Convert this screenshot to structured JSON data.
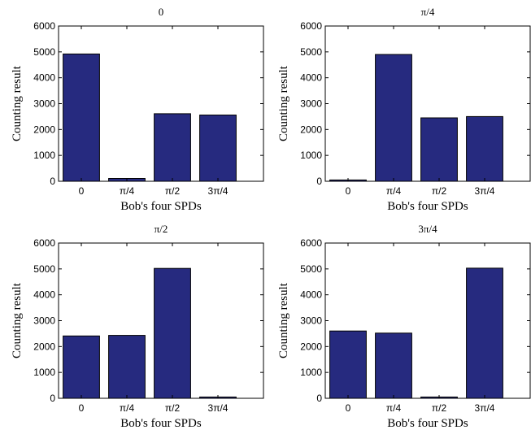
{
  "chart_data": [
    {
      "type": "bar",
      "title": "0",
      "xlabel": "Bob's four SPDs",
      "ylabel": "Counting result",
      "categories": [
        "0",
        "π/4",
        "π/2",
        "3π/4"
      ],
      "values": [
        4920,
        110,
        2610,
        2560
      ],
      "ylim": [
        0,
        6000
      ],
      "yticks": [
        "0",
        "1000",
        "2000",
        "3000",
        "4000",
        "5000",
        "6000"
      ],
      "color": "#262a7f"
    },
    {
      "type": "bar",
      "title": "π/4",
      "xlabel": "Bob's four SPDs",
      "ylabel": "Counting result",
      "categories": [
        "0",
        "π/4",
        "π/2",
        "3π/4"
      ],
      "values": [
        50,
        4900,
        2450,
        2500
      ],
      "ylim": [
        0,
        6000
      ],
      "yticks": [
        "0",
        "1000",
        "2000",
        "3000",
        "4000",
        "5000",
        "6000"
      ],
      "color": "#262a7f"
    },
    {
      "type": "bar",
      "title": "π/2",
      "xlabel": "Bob's four SPDs",
      "ylabel": "Counting result",
      "categories": [
        "0",
        "π/4",
        "π/2",
        "3π/4"
      ],
      "values": [
        2410,
        2430,
        5020,
        50
      ],
      "ylim": [
        0,
        6000
      ],
      "yticks": [
        "0",
        "1000",
        "2000",
        "3000",
        "4000",
        "5000",
        "6000"
      ],
      "color": "#262a7f"
    },
    {
      "type": "bar",
      "title": "3π/4",
      "xlabel": "Bob's four SPDs",
      "ylabel": "Counting result",
      "categories": [
        "0",
        "π/4",
        "π/2",
        "3π/4"
      ],
      "values": [
        2600,
        2520,
        50,
        5030
      ],
      "ylim": [
        0,
        6000
      ],
      "yticks": [
        "0",
        "1000",
        "2000",
        "3000",
        "4000",
        "5000",
        "6000"
      ],
      "color": "#262a7f"
    }
  ]
}
